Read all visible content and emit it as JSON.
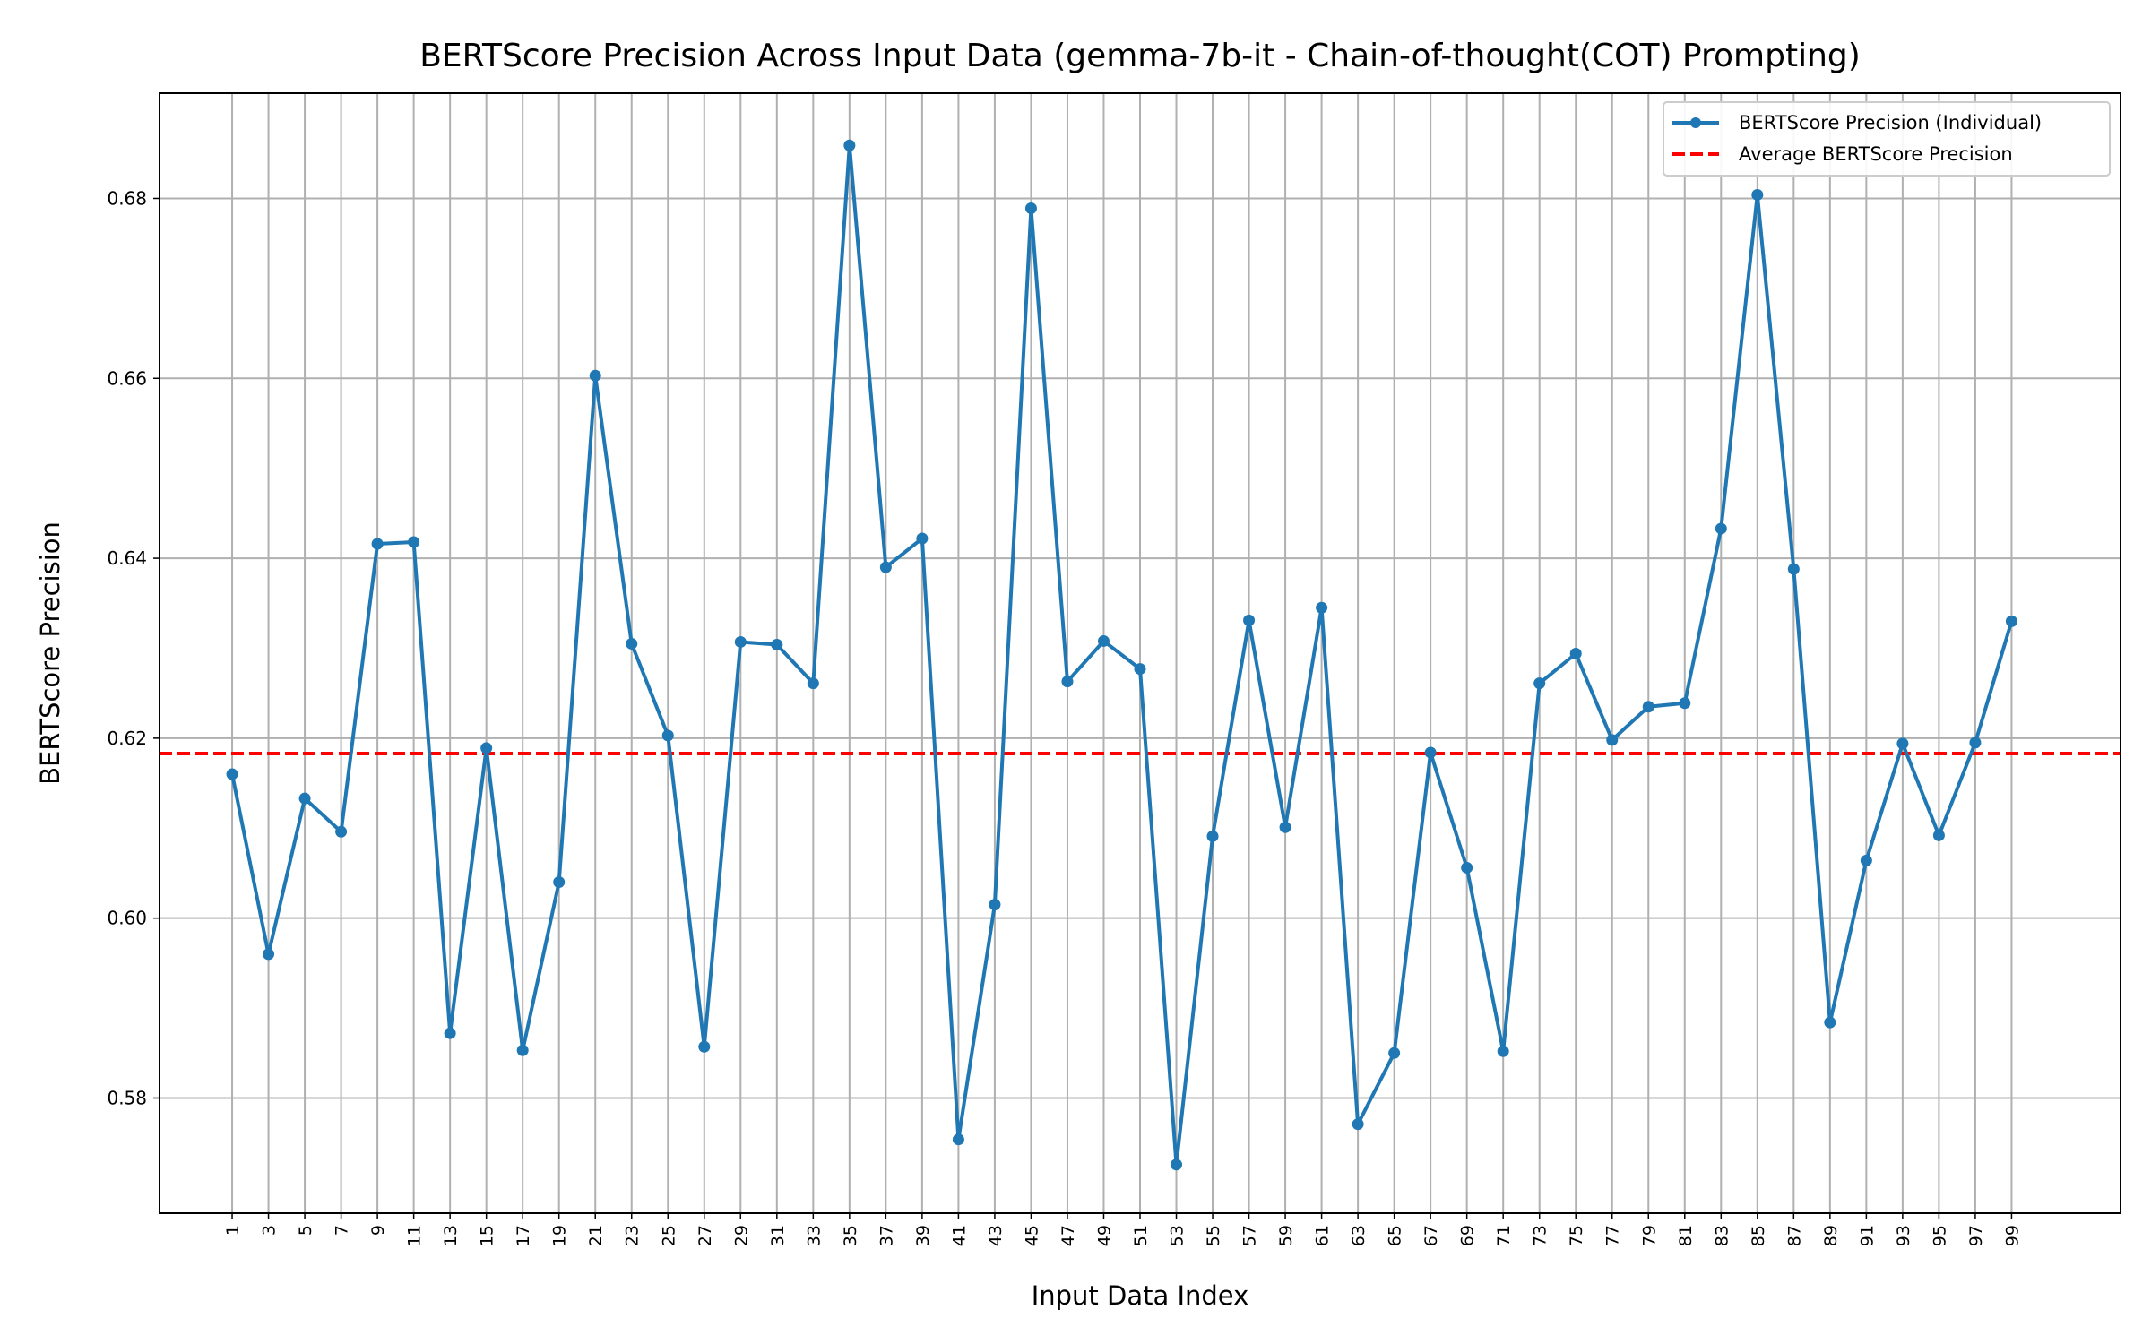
{
  "chart_data": {
    "type": "line",
    "title": "BERTScore Precision Across Input Data (gemma-7b-it - Chain-of-thought(COT) Prompting)",
    "xlabel": "Input Data Index",
    "ylabel": "BERTScore Precision",
    "xlim": [
      -2,
      52
    ],
    "ylim": [
      0.5672,
      0.6917
    ],
    "x_tick_labels": [
      "1",
      "3",
      "5",
      "7",
      "9",
      "11",
      "13",
      "15",
      "17",
      "19",
      "21",
      "23",
      "25",
      "27",
      "29",
      "31",
      "33",
      "35",
      "37",
      "39",
      "41",
      "43",
      "45",
      "47",
      "49",
      "51",
      "53",
      "55",
      "57",
      "59",
      "61",
      "63",
      "65",
      "67",
      "69",
      "71",
      "73",
      "75",
      "77",
      "79",
      "81",
      "83",
      "85",
      "87",
      "89",
      "91",
      "93",
      "95",
      "97",
      "99"
    ],
    "y_ticks": [
      0.58,
      0.6,
      0.62,
      0.64,
      0.66,
      0.68
    ],
    "y_tick_labels": [
      "0.58",
      "0.60",
      "0.62",
      "0.64",
      "0.66",
      "0.68"
    ],
    "grid": true,
    "legend_position": "top-right",
    "series": [
      {
        "name": "BERTScore Precision (Individual)",
        "color": "#1f77b4",
        "style": "line-with-markers",
        "values": [
          0.616,
          0.596,
          0.6133,
          0.6096,
          0.6416,
          0.6418,
          0.5872,
          0.6189,
          0.5853,
          0.604,
          0.6603,
          0.6305,
          0.6203,
          0.5857,
          0.6307,
          0.6304,
          0.6261,
          0.6859,
          0.639,
          0.6422,
          0.5754,
          0.6015,
          0.6789,
          0.6263,
          0.6308,
          0.6277,
          0.5726,
          0.6091,
          0.6331,
          0.6101,
          0.6345,
          0.5771,
          0.585,
          0.6184,
          0.6056,
          0.5852,
          0.6261,
          0.6294,
          0.6198,
          0.6235,
          0.6239,
          0.6433,
          0.6804,
          0.6388,
          0.5884,
          0.6064,
          0.6194,
          0.6092,
          0.6195,
          0.633
        ]
      },
      {
        "name": "Average BERTScore Precision",
        "color": "#ff0000",
        "style": "dashed-horizontal",
        "value": 0.6183
      }
    ]
  }
}
